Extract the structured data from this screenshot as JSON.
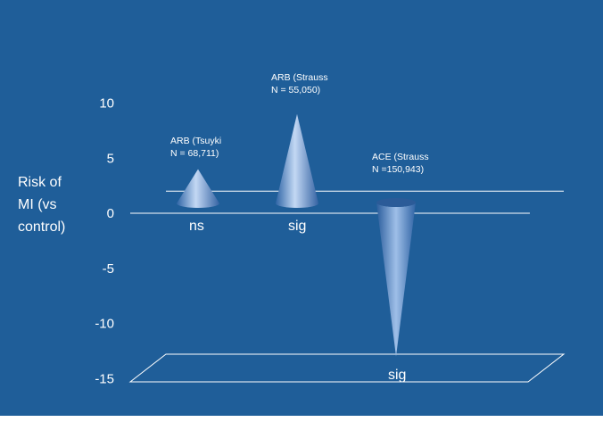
{
  "chart_data": {
    "type": "bar",
    "shape": "cone",
    "ylabel_lines": [
      "Risk of",
      "MI (vs",
      "control)"
    ],
    "yticks": [
      10,
      5,
      0,
      -5,
      -10,
      -15
    ],
    "ylim": [
      -15,
      10
    ],
    "reference_lines": [
      2,
      0
    ],
    "grid": false,
    "categories": [
      {
        "label_lines": [
          "ARB (Tsuyki",
          "N = 68,711)"
        ],
        "significance": "ns"
      },
      {
        "label_lines": [
          "ARB (Strauss",
          "N = 55,050)"
        ],
        "significance": "sig"
      },
      {
        "label_lines": [
          "ACE (Strauss",
          "N =150,943)"
        ],
        "significance": "sig"
      }
    ],
    "values": [
      4,
      9,
      -13
    ],
    "colors": {
      "background": "#1f5e99",
      "cone_light": "#b7cff0",
      "cone_dark": "#3b6fb0",
      "line": "#ffffff"
    }
  }
}
